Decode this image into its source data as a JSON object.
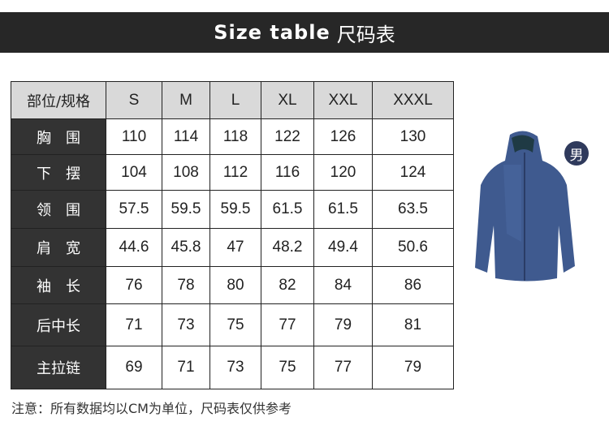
{
  "title": {
    "en": "Size table",
    "zh": "尺码表"
  },
  "table": {
    "header": [
      "部位/规格",
      "S",
      "M",
      "L",
      "XL",
      "XXL",
      "XXXL"
    ],
    "rows": [
      {
        "label": "胸　围",
        "values": [
          "110",
          "114",
          "118",
          "122",
          "126",
          "130"
        ]
      },
      {
        "label": "下　摆",
        "values": [
          "104",
          "108",
          "112",
          "116",
          "120",
          "124"
        ]
      },
      {
        "label": "领　围",
        "values": [
          "57.5",
          "59.5",
          "59.5",
          "61.5",
          "61.5",
          "63.5"
        ]
      },
      {
        "label": "肩　宽",
        "values": [
          "44.6",
          "45.8",
          "47",
          "48.2",
          "49.4",
          "50.6"
        ]
      },
      {
        "label": "袖　长",
        "values": [
          "76",
          "78",
          "80",
          "82",
          "84",
          "86"
        ]
      },
      {
        "label": "后中长",
        "values": [
          "71",
          "73",
          "75",
          "77",
          "79",
          "81"
        ]
      },
      {
        "label": "主拉链",
        "values": [
          "69",
          "71",
          "73",
          "75",
          "77",
          "79"
        ]
      }
    ]
  },
  "note": "注意：所有数据均以CM为单位，尺码表仅供参考",
  "badge": "男",
  "colors": {
    "banner": "#272727",
    "header_bg": "#d9d9d9",
    "label_bg": "#333333",
    "jacket": "#3f5a8f"
  }
}
